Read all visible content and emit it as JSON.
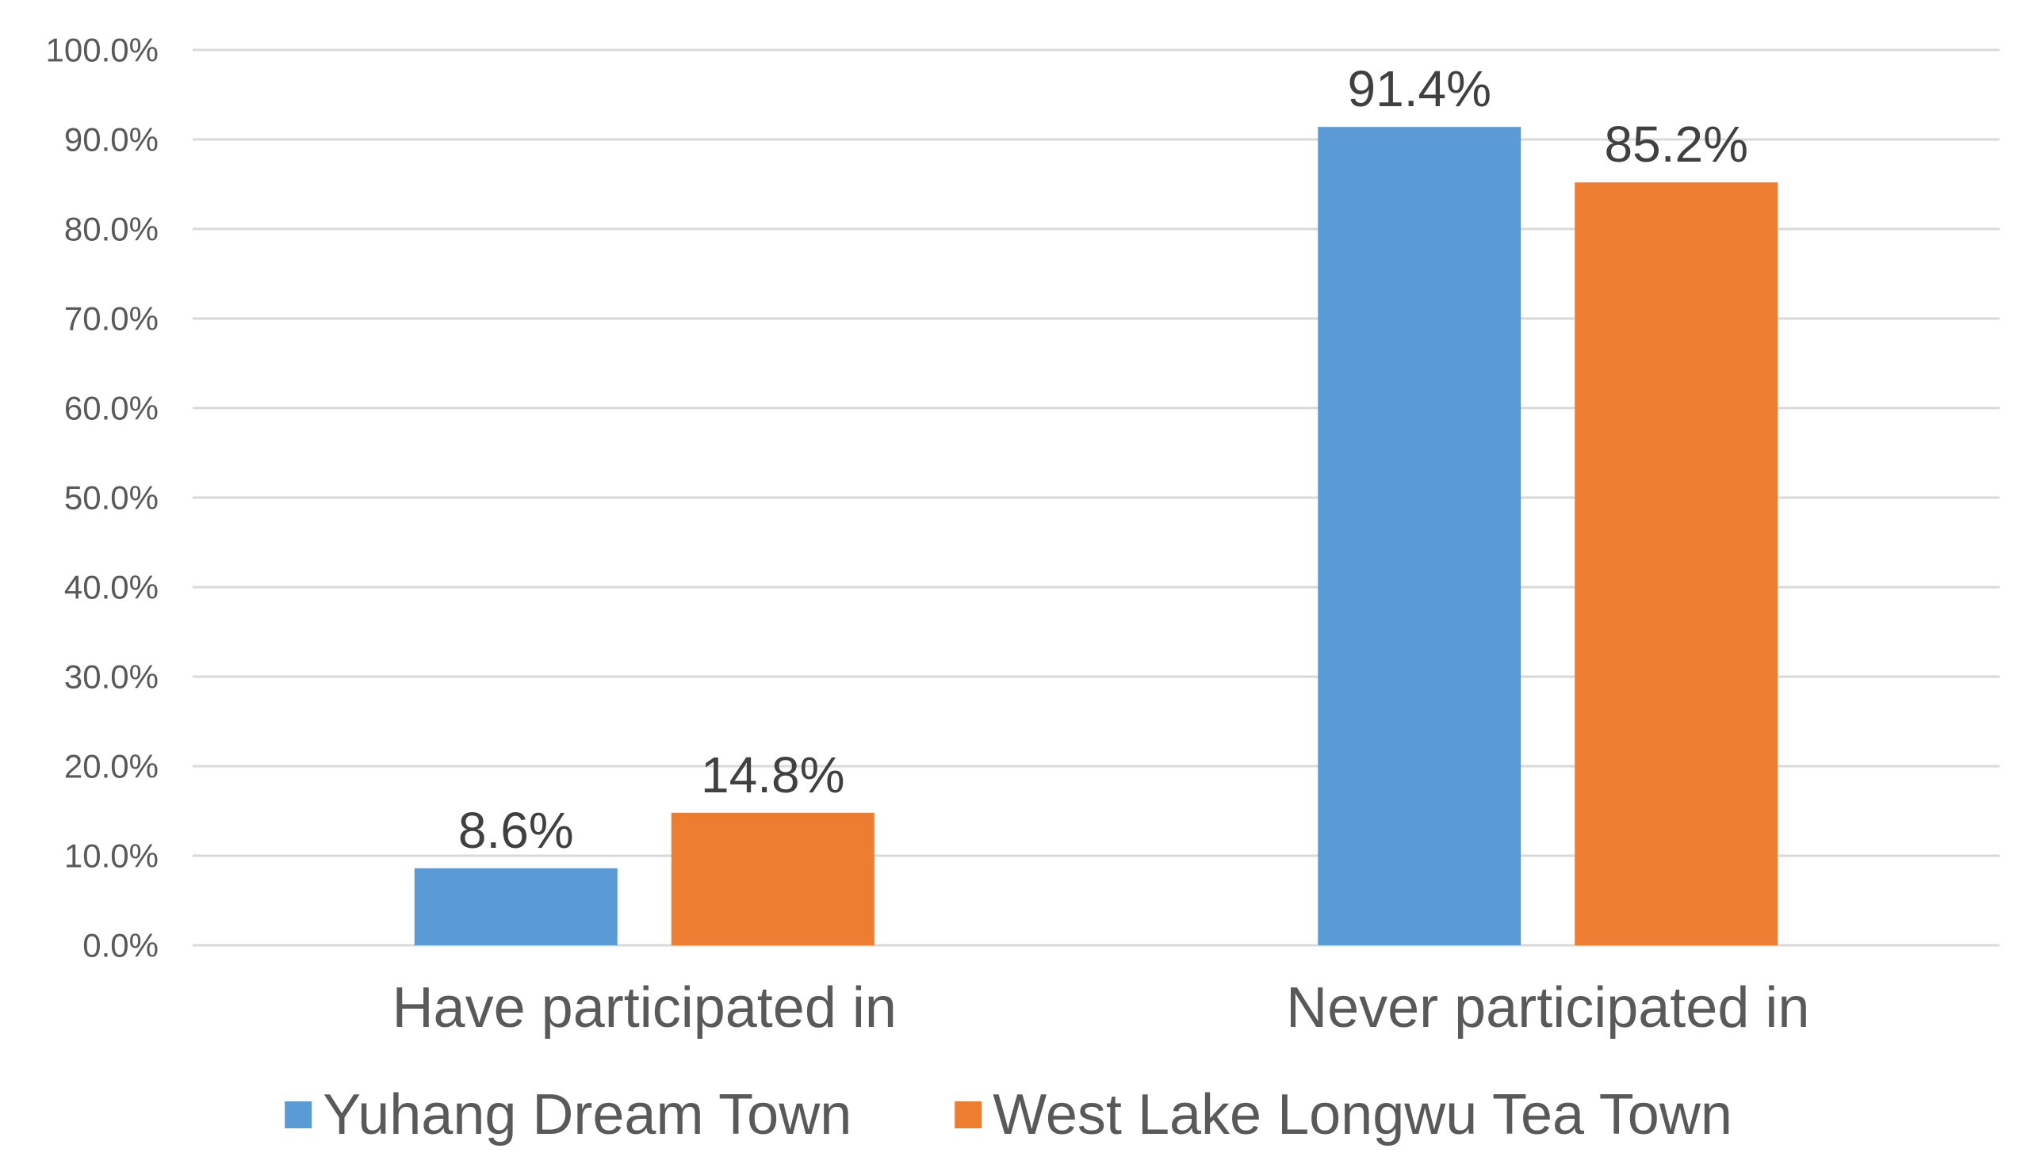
{
  "chart_data": {
    "type": "bar",
    "title": "",
    "xlabel": "",
    "ylabel": "",
    "categories": [
      "Have participated in",
      "Never participated in"
    ],
    "series": [
      {
        "name": "Yuhang Dream Town",
        "values": [
          8.6,
          91.4
        ],
        "labels": [
          "8.6%",
          "91.4%"
        ],
        "color": "#5B9BD5"
      },
      {
        "name": "West Lake Longwu Tea Town",
        "values": [
          14.8,
          85.2
        ],
        "labels": [
          "14.8%",
          "85.2%"
        ],
        "color": "#ED7D31"
      }
    ],
    "ylim": [
      0,
      100
    ],
    "yticks": [
      0,
      10,
      20,
      30,
      40,
      50,
      60,
      70,
      80,
      90,
      100
    ],
    "ytick_labels": [
      "0.0%",
      "10.0%",
      "20.0%",
      "30.0%",
      "40.0%",
      "50.0%",
      "60.0%",
      "70.0%",
      "80.0%",
      "90.0%",
      "100.0%"
    ],
    "grid": true,
    "legend": "bottom",
    "colors": {
      "grid": "#D9D9D9",
      "axis_text": "#595959",
      "data_label_text": "#404040"
    }
  }
}
